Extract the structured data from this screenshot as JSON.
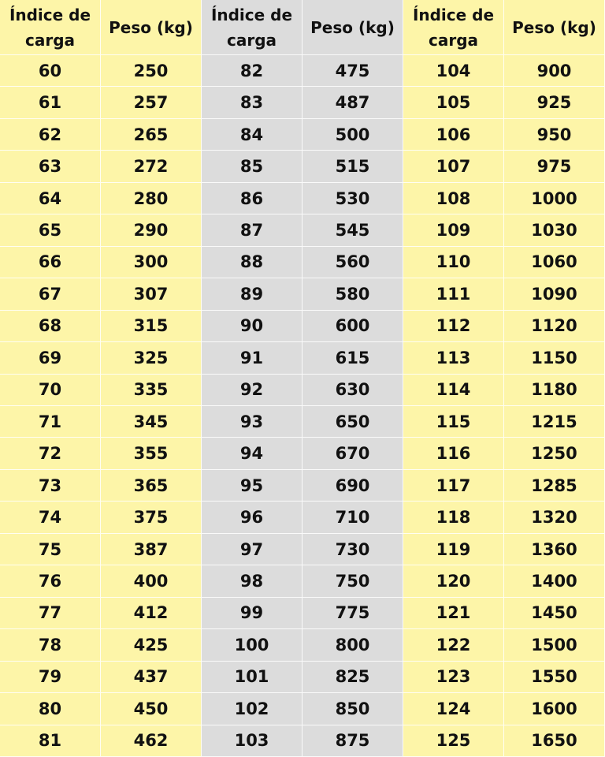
{
  "table": {
    "header": [
      "Índice de carga",
      "Peso (kg)",
      "Índice de carga",
      "Peso (kg)",
      "Índice de carga",
      "Peso (kg)"
    ],
    "rows": [
      [
        60,
        250,
        82,
        475,
        104,
        900
      ],
      [
        61,
        257,
        83,
        487,
        105,
        925
      ],
      [
        62,
        265,
        84,
        500,
        106,
        950
      ],
      [
        63,
        272,
        85,
        515,
        107,
        975
      ],
      [
        64,
        280,
        86,
        530,
        108,
        1000
      ],
      [
        65,
        290,
        87,
        545,
        109,
        1030
      ],
      [
        66,
        300,
        88,
        560,
        110,
        1060
      ],
      [
        67,
        307,
        89,
        580,
        111,
        1090
      ],
      [
        68,
        315,
        90,
        600,
        112,
        1120
      ],
      [
        69,
        325,
        91,
        615,
        113,
        1150
      ],
      [
        70,
        335,
        92,
        630,
        114,
        1180
      ],
      [
        71,
        345,
        93,
        650,
        115,
        1215
      ],
      [
        72,
        355,
        94,
        670,
        116,
        1250
      ],
      [
        73,
        365,
        95,
        690,
        117,
        1285
      ],
      [
        74,
        375,
        96,
        710,
        118,
        1320
      ],
      [
        75,
        387,
        97,
        730,
        119,
        1360
      ],
      [
        76,
        400,
        98,
        750,
        120,
        1400
      ],
      [
        77,
        412,
        99,
        775,
        121,
        1450
      ],
      [
        78,
        425,
        100,
        800,
        122,
        1500
      ],
      [
        79,
        437,
        101,
        825,
        123,
        1550
      ],
      [
        80,
        450,
        102,
        850,
        124,
        1600
      ],
      [
        81,
        462,
        103,
        875,
        125,
        1650
      ]
    ]
  }
}
